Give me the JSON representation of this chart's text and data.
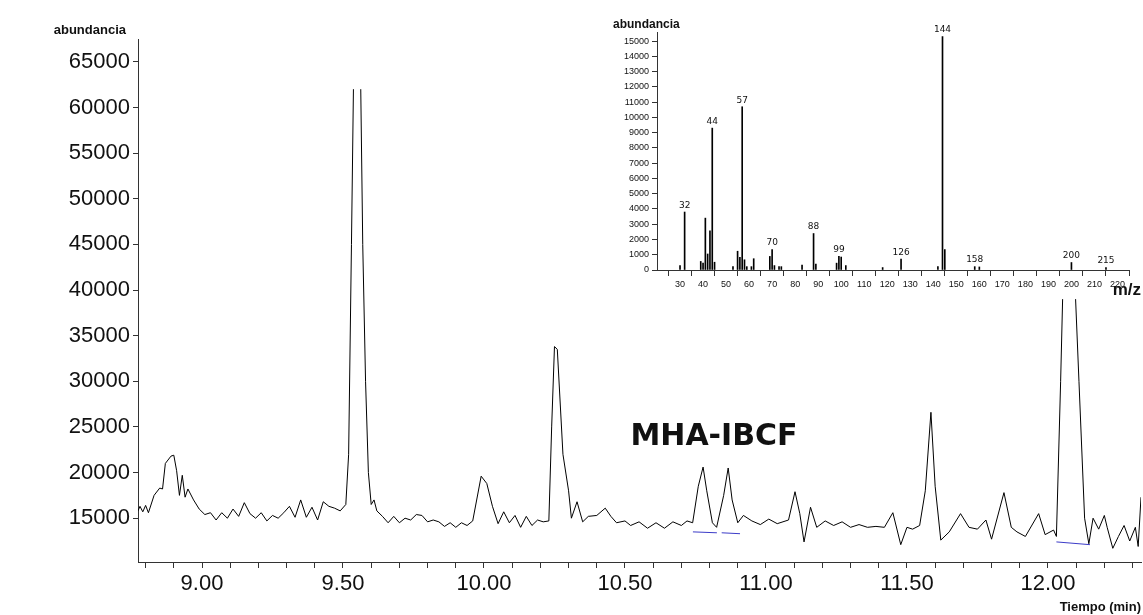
{
  "chart_data": [
    {
      "type": "line",
      "xlabel": "Tiempo (min)",
      "ylabel": "abundancia",
      "grid": false,
      "xlim": [
        8.773,
        12.33
      ],
      "ylim": [
        10200,
        67500
      ],
      "xticks": [
        {
          "value": 8.8,
          "label": null
        },
        {
          "value": 8.9,
          "label": null
        },
        {
          "value": 9,
          "label": "9.00"
        },
        {
          "value": 9.1,
          "label": null
        },
        {
          "value": 9.2,
          "label": null
        },
        {
          "value": 9.3,
          "label": null
        },
        {
          "value": 9.4,
          "label": null
        },
        {
          "value": 9.5,
          "label": "9.50"
        },
        {
          "value": 9.6,
          "label": null
        },
        {
          "value": 9.7,
          "label": null
        },
        {
          "value": 9.8,
          "label": null
        },
        {
          "value": 9.9,
          "label": null
        },
        {
          "value": 10,
          "label": "10.00"
        },
        {
          "value": 10.1,
          "label": null
        },
        {
          "value": 10.2,
          "label": null
        },
        {
          "value": 10.3,
          "label": null
        },
        {
          "value": 10.4,
          "label": null
        },
        {
          "value": 10.5,
          "label": "10.50"
        },
        {
          "value": 10.6,
          "label": null
        },
        {
          "value": 10.7,
          "label": null
        },
        {
          "value": 10.8,
          "label": null
        },
        {
          "value": 10.9,
          "label": null
        },
        {
          "value": 11,
          "label": "11.00"
        },
        {
          "value": 11.1,
          "label": null
        },
        {
          "value": 11.2,
          "label": null
        },
        {
          "value": 11.3,
          "label": null
        },
        {
          "value": 11.4,
          "label": null
        },
        {
          "value": 11.5,
          "label": "11.50"
        },
        {
          "value": 11.6,
          "label": null
        },
        {
          "value": 11.7,
          "label": null
        },
        {
          "value": 11.8,
          "label": null
        },
        {
          "value": 11.9,
          "label": null
        },
        {
          "value": 12,
          "label": "12.00"
        },
        {
          "value": 12.1,
          "label": null
        },
        {
          "value": 12.2,
          "label": null
        },
        {
          "value": 12.3,
          "label": null
        }
      ],
      "yticks": [
        15000,
        20000,
        25000,
        30000,
        35000,
        40000,
        45000,
        50000,
        55000,
        60000,
        65000
      ],
      "annotations": [
        "MHA-IBCF"
      ],
      "series": [
        {
          "color": "#000000",
          "x": [
            8.773,
            8.78,
            8.79,
            8.8,
            8.81,
            8.83,
            8.85,
            8.86,
            8.87,
            8.89,
            8.9,
            8.91,
            8.92,
            8.93,
            8.94,
            8.95,
            8.97,
            8.99,
            9.01,
            9.03,
            9.05,
            9.07,
            9.09,
            9.11,
            9.13,
            9.15,
            9.17,
            9.19,
            9.21,
            9.23,
            9.25,
            9.27,
            9.29,
            9.31,
            9.33,
            9.35,
            9.37,
            9.39,
            9.41,
            9.43,
            9.45,
            9.47,
            9.49,
            9.51,
            9.52,
            9.53,
            9.537,
            9.55,
            9.563,
            9.57,
            9.58,
            9.59,
            9.6,
            9.61,
            9.62,
            9.64,
            9.66,
            9.68,
            9.7,
            9.72,
            9.74,
            9.76,
            9.78,
            9.8,
            9.82,
            9.84,
            9.86,
            9.88,
            9.9,
            9.92,
            9.94,
            9.96,
            9.99,
            10.01,
            10.03,
            10.05,
            10.07,
            10.09,
            10.11,
            10.13,
            10.15,
            10.17,
            10.19,
            10.21,
            10.23,
            10.24,
            10.25,
            10.26,
            10.28,
            10.3,
            10.31,
            10.33,
            10.35,
            10.37,
            10.4,
            10.43,
            10.45,
            10.47,
            10.5,
            10.52,
            10.55,
            10.58,
            10.61,
            10.64,
            10.67,
            10.7,
            10.72,
            10.74,
            10.76,
            10.777,
            10.79,
            10.81,
            10.825,
            10.85,
            10.866,
            10.88,
            10.9,
            10.92,
            10.95,
            10.98,
            11.01,
            11.04,
            11.08,
            11.103,
            11.12,
            11.135,
            11.158,
            11.18,
            11.21,
            11.24,
            11.27,
            11.3,
            11.33,
            11.36,
            11.39,
            11.42,
            11.45,
            11.478,
            11.5,
            11.52,
            11.545,
            11.565,
            11.585,
            11.6,
            11.62,
            11.65,
            11.69,
            11.72,
            11.75,
            11.78,
            11.8,
            11.844,
            11.87,
            11.89,
            11.92,
            11.967,
            11.99,
            12.02,
            12.03,
            12.045,
            12.052,
            12.075,
            12.098,
            12.11,
            12.13,
            12.145,
            12.16,
            12.18,
            12.2,
            12.21,
            12.23,
            12.25,
            12.27,
            12.29,
            12.31,
            12.32,
            12.33
          ],
          "values": [
            15800,
            16300,
            15700,
            16400,
            15600,
            17500,
            18300,
            18200,
            21000,
            21800,
            21900,
            20200,
            17500,
            19700,
            17300,
            18200,
            17000,
            16000,
            15400,
            15600,
            14800,
            15600,
            15000,
            16000,
            15200,
            16700,
            15500,
            15000,
            15600,
            14700,
            15300,
            15000,
            15600,
            16300,
            15100,
            17000,
            15100,
            16200,
            14800,
            16800,
            16300,
            16100,
            15800,
            16500,
            22000,
            45000,
            62000,
            null,
            62000,
            45000,
            30000,
            20000,
            16500,
            17000,
            15800,
            15200,
            14500,
            15200,
            14500,
            15000,
            14800,
            15400,
            15300,
            14600,
            14800,
            14600,
            14100,
            14500,
            14000,
            14500,
            14200,
            14700,
            19600,
            18800,
            16300,
            14400,
            15700,
            14500,
            15300,
            14000,
            15200,
            14200,
            14800,
            14600,
            14700,
            25000,
            33800,
            33500,
            22000,
            18000,
            15000,
            16800,
            14600,
            15200,
            15300,
            16100,
            15200,
            14500,
            14700,
            14200,
            14600,
            13900,
            14500,
            13900,
            14600,
            14200,
            14700,
            14500,
            18500,
            20600,
            18000,
            14500,
            14000,
            17500,
            20500,
            17000,
            14500,
            15300,
            14700,
            14300,
            14900,
            14400,
            14800,
            17900,
            15500,
            12400,
            16200,
            14000,
            14700,
            14200,
            14600,
            14000,
            14300,
            14000,
            14100,
            14000,
            15600,
            12100,
            14000,
            13800,
            14200,
            18000,
            26600,
            18500,
            12600,
            13500,
            15500,
            14000,
            13800,
            14800,
            12700,
            17800,
            14000,
            13500,
            13000,
            15500,
            13200,
            13700,
            13000,
            30000,
            39000,
            null,
            39000,
            30000,
            15000,
            12200,
            15000,
            13800,
            15300,
            14000,
            11700,
            13000,
            14200,
            12500,
            14000,
            11900,
            17300
          ]
        },
        {
          "color": "#3c3cc8",
          "x": [
            10.741,
            10.826
          ],
          "values": [
            13500,
            13400
          ]
        },
        {
          "color": "#3c3cc8",
          "x": [
            10.843,
            10.908
          ],
          "values": [
            13400,
            13300
          ]
        },
        {
          "color": "#3c3cc8",
          "x": [
            12.03,
            12.149
          ],
          "values": [
            12400,
            12100
          ]
        }
      ]
    },
    {
      "type": "bar",
      "xlabel": "m/z",
      "ylabel": "abundancia",
      "grid": false,
      "color": "#000000",
      "xlim": [
        20,
        225
      ],
      "ylim": [
        0,
        15600
      ],
      "xticks": [
        30,
        40,
        50,
        60,
        70,
        80,
        90,
        100,
        110,
        120,
        130,
        140,
        150,
        160,
        170,
        180,
        190,
        200,
        210,
        220
      ],
      "yticks": [
        0,
        1000,
        2000,
        3000,
        4000,
        5000,
        6000,
        7000,
        8000,
        9000,
        10000,
        11000,
        12000,
        13000,
        14000,
        15000
      ],
      "x": [
        30,
        32,
        39,
        40,
        41,
        42,
        43,
        44,
        45,
        53,
        55,
        56,
        57,
        58,
        59,
        61,
        62,
        69,
        70,
        71,
        73,
        74,
        83,
        88,
        89,
        98,
        99,
        100,
        102,
        118,
        126,
        142,
        144,
        145,
        158,
        160,
        200,
        215
      ],
      "values": [
        290,
        3800,
        560,
        450,
        3400,
        1050,
        2570,
        9300,
        510,
        220,
        1230,
        830,
        10700,
        670,
        220,
        220,
        740,
        890,
        1340,
        290,
        220,
        220,
        330,
        2390,
        380,
        450,
        890,
        850,
        290,
        160,
        710,
        220,
        15300,
        1340,
        220,
        200,
        490,
        160
      ],
      "annotations": [
        {
          "text": "32",
          "x": 32,
          "y": 3800
        },
        {
          "text": "44",
          "x": 44,
          "y": 9300
        },
        {
          "text": "57",
          "x": 57,
          "y": 10700
        },
        {
          "text": "70",
          "x": 70,
          "y": 1340
        },
        {
          "text": "88",
          "x": 88,
          "y": 2390
        },
        {
          "text": "99",
          "x": 99,
          "y": 890
        },
        {
          "text": "126",
          "x": 126,
          "y": 710
        },
        {
          "text": "144",
          "x": 144,
          "y": 15300
        },
        {
          "text": "158",
          "x": 158,
          "y": 220
        },
        {
          "text": "200",
          "x": 200,
          "y": 490
        },
        {
          "text": "215",
          "x": 215,
          "y": 160
        }
      ]
    }
  ]
}
